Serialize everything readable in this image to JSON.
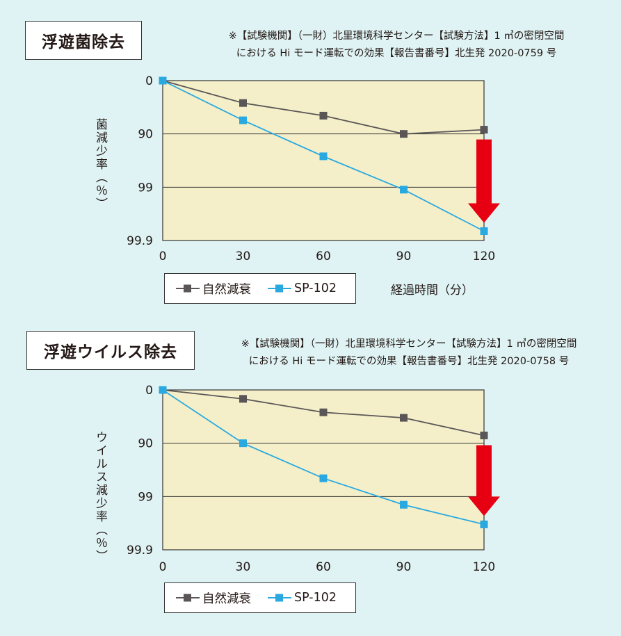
{
  "colors": {
    "plot_bg": "#f4efc9",
    "natural": "#5a5657",
    "sp": "#29a9e0",
    "arrow": "#e60012",
    "page_bg": "#dff3f4"
  },
  "panels": [
    {
      "title": "浮遊菌除去",
      "note_line1": "※【試験機関】（一財）北里環境科学センター【試験方法】1 ㎥の密閉空間",
      "note_line2": "における Hi モード運転での効果【報告書番号】北生発 2020-0759 号",
      "ylabel": "菌減少率（％）",
      "xtitle": "経過時間（分）",
      "legend": {
        "natural_label": "自然減衰",
        "sp_label": "SP-102"
      }
    },
    {
      "title": "浮遊ウイルス除去",
      "note_line1": "※【試験機関】（一財）北里環境科学センター【試験方法】1 ㎥の密閉空間",
      "note_line2": "における Hi モード運転での効果【報告書番号】北生発 2020-0758 号",
      "ylabel": "ウイルス減少率（％）",
      "xtitle": "",
      "legend": {
        "natural_label": "自然減衰",
        "sp_label": "SP-102"
      }
    }
  ],
  "chart_data": [
    {
      "type": "line",
      "title": "浮遊菌除去",
      "xlabel": "経過時間（分）",
      "ylabel": "菌減少率（％）",
      "y_scale": "log reduction (-log10(1 - rate))",
      "x": [
        0,
        30,
        60,
        90,
        120
      ],
      "xlim": [
        0,
        120
      ],
      "x_ticks": [
        "0",
        "30",
        "60",
        "90",
        "120"
      ],
      "y_ticks": [
        "0",
        "90",
        "99",
        "99.9"
      ],
      "ylim": [
        0,
        99.9
      ],
      "grid": "horizontal",
      "series": [
        {
          "name": "自然減衰",
          "values": [
            0,
            62,
            78,
            90,
            88
          ],
          "color": "#5a5657",
          "marker": "square"
        },
        {
          "name": "SP-102",
          "values": [
            0,
            82,
            96.2,
            99.1,
            99.85
          ],
          "color": "#29a9e0",
          "marker": "square"
        }
      ],
      "annotation": "red down arrow at 120 min"
    },
    {
      "type": "line",
      "title": "浮遊ウイルス除去",
      "xlabel": "",
      "ylabel": "ウイルス減少率（％）",
      "y_scale": "log reduction (-log10(1 - rate))",
      "x": [
        0,
        30,
        60,
        90,
        120
      ],
      "xlim": [
        0,
        120
      ],
      "x_ticks": [
        "0",
        "30",
        "60",
        "90",
        "120"
      ],
      "y_ticks": [
        "0",
        "90",
        "99",
        "99.9"
      ],
      "ylim": [
        0,
        99.9
      ],
      "grid": "horizontal",
      "series": [
        {
          "name": "自然減衰",
          "values": [
            0,
            32,
            62,
            70,
            86
          ],
          "color": "#5a5657",
          "marker": "square"
        },
        {
          "name": "SP-102",
          "values": [
            0,
            90,
            97.8,
            99.3,
            99.7
          ],
          "color": "#29a9e0",
          "marker": "square"
        }
      ],
      "annotation": "red down arrow at 120 min"
    }
  ]
}
